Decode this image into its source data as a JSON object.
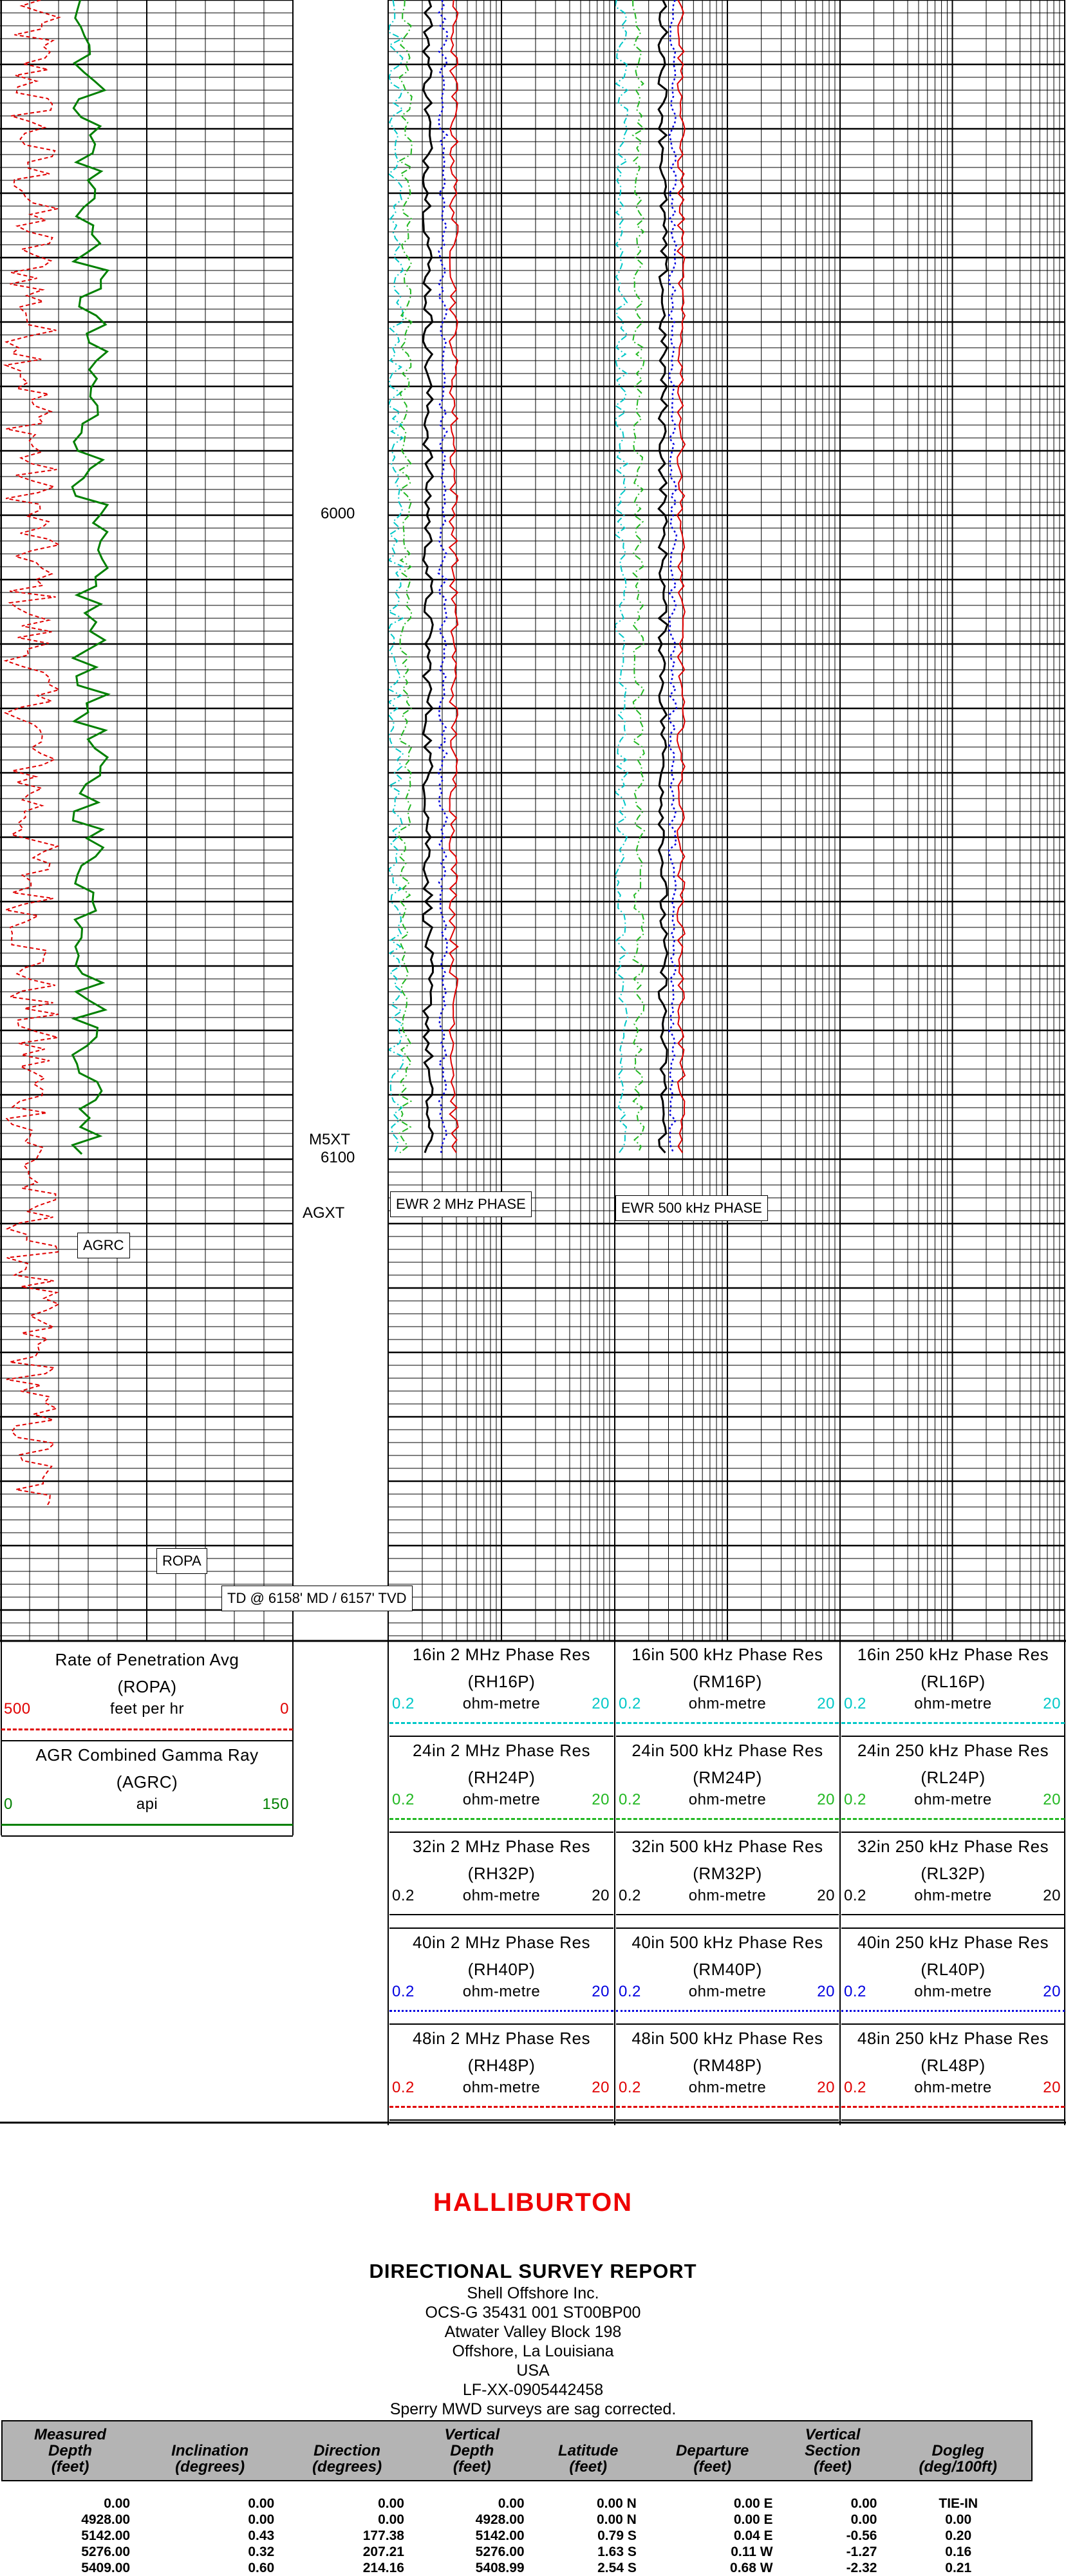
{
  "log": {
    "depth_labels": [
      "6000",
      "6100"
    ],
    "formation_tops": [
      "M5XT",
      "AGXT"
    ],
    "curve_tags": {
      "agrc": "AGRC",
      "ropa": "ROPA",
      "ewr2": "EWR 2 MHz PHASE",
      "ewr500": "EWR 500 kHz PHASE"
    },
    "td_label": "TD @ 6158' MD / 6157' TVD"
  },
  "headers": {
    "track1": [
      {
        "name": "Rate of Penetration Avg",
        "mnemonic": "(ROPA)",
        "unit": "feet per hr",
        "left": "500",
        "right": "0",
        "color": "#e00000",
        "style": "dashed"
      },
      {
        "name": "AGR Combined Gamma Ray",
        "mnemonic": "(AGRC)",
        "unit": "api",
        "left": "0",
        "right": "150",
        "color": "#008000",
        "style": "solid"
      }
    ],
    "track3": [
      {
        "name": "16in 2 MHz Phase Res",
        "mnemonic": "(RH16P)",
        "unit": "ohm-metre",
        "left": "0.2",
        "right": "20",
        "color": "#00c8c8",
        "style": "dashdot"
      },
      {
        "name": "24in 2 MHz Phase Res",
        "mnemonic": "(RH24P)",
        "unit": "ohm-metre",
        "left": "0.2",
        "right": "20",
        "color": "#22b822",
        "style": "dashdot"
      },
      {
        "name": "32in 2 MHz Phase Res",
        "mnemonic": "(RH32P)",
        "unit": "ohm-metre",
        "left": "0.2",
        "right": "20",
        "color": "#000000",
        "style": "solid"
      },
      {
        "name": "40in 2 MHz Phase Res",
        "mnemonic": "(RH40P)",
        "unit": "ohm-metre",
        "left": "0.2",
        "right": "20",
        "color": "#0000e0",
        "style": "dotted"
      },
      {
        "name": "48in 2 MHz Phase Res",
        "mnemonic": "(RH48P)",
        "unit": "ohm-metre",
        "left": "0.2",
        "right": "20",
        "color": "#e00000",
        "style": "longdash"
      }
    ],
    "track4": [
      {
        "name": "16in 500 kHz Phase Res",
        "mnemonic": "(RM16P)",
        "unit": "ohm-metre",
        "left": "0.2",
        "right": "20",
        "color": "#00c8c8",
        "style": "dashdot"
      },
      {
        "name": "24in 500 kHz Phase Res",
        "mnemonic": "(RM24P)",
        "unit": "ohm-metre",
        "left": "0.2",
        "right": "20",
        "color": "#22b822",
        "style": "dashdot"
      },
      {
        "name": "32in 500 kHz Phase Res",
        "mnemonic": "(RM32P)",
        "unit": "ohm-metre",
        "left": "0.2",
        "right": "20",
        "color": "#000000",
        "style": "solid"
      },
      {
        "name": "40in 500 kHz Phase Res",
        "mnemonic": "(RM40P)",
        "unit": "ohm-metre",
        "left": "0.2",
        "right": "20",
        "color": "#0000e0",
        "style": "dotted"
      },
      {
        "name": "48in 500 kHz Phase Res",
        "mnemonic": "(RM48P)",
        "unit": "ohm-metre",
        "left": "0.2",
        "right": "20",
        "color": "#e00000",
        "style": "longdash"
      }
    ],
    "track5": [
      {
        "name": "16in 250 kHz Phase Res",
        "mnemonic": "(RL16P)",
        "unit": "ohm-metre",
        "left": "0.2",
        "right": "20",
        "color": "#00c8c8",
        "style": "dashdot"
      },
      {
        "name": "24in 250 kHz Phase Res",
        "mnemonic": "(RL24P)",
        "unit": "ohm-metre",
        "left": "0.2",
        "right": "20",
        "color": "#22b822",
        "style": "dashdot"
      },
      {
        "name": "32in 250 kHz Phase Res",
        "mnemonic": "(RL32P)",
        "unit": "ohm-metre",
        "left": "0.2",
        "right": "20",
        "color": "#000000",
        "style": "solid"
      },
      {
        "name": "40in 250 kHz Phase Res",
        "mnemonic": "(RL40P)",
        "unit": "ohm-metre",
        "left": "0.2",
        "right": "20",
        "color": "#0000e0",
        "style": "dotted"
      },
      {
        "name": "48in 250 kHz Phase Res",
        "mnemonic": "(RL48P)",
        "unit": "ohm-metre",
        "left": "0.2",
        "right": "20",
        "color": "#e00000",
        "style": "longdash"
      }
    ]
  },
  "report": {
    "logo": "HALLIBURTON",
    "title": "DIRECTIONAL SURVEY REPORT",
    "lines": [
      "Shell Offshore Inc.",
      "OCS-G 35431 001 ST00BP00",
      "Atwater Valley Block 198",
      "Offshore, La Louisiana",
      "USA",
      "LF-XX-0905442458",
      "Sperry MWD surveys are sag corrected."
    ],
    "columns": [
      [
        "Measured",
        "Depth",
        "(feet)"
      ],
      [
        "Inclination",
        "(degrees)"
      ],
      [
        "Direction",
        "(degrees)"
      ],
      [
        "Vertical",
        "Depth",
        "(feet)"
      ],
      [
        "Latitude",
        "(feet)"
      ],
      [
        "Departure",
        "(feet)"
      ],
      [
        "Vertical",
        "Section",
        "(feet)"
      ],
      [
        "Dogleg",
        "(deg/100ft)"
      ]
    ],
    "rows": [
      [
        "0.00",
        "0.00",
        "0.00",
        "0.00",
        "0.00 N",
        "0.00 E",
        "0.00",
        "TIE-IN"
      ],
      [
        "4928.00",
        "0.00",
        "0.00",
        "4928.00",
        "0.00 N",
        "0.00 E",
        "0.00",
        "0.00"
      ],
      [
        "5142.00",
        "0.43",
        "177.38",
        "5142.00",
        "0.79 S",
        "0.04 E",
        "-0.56",
        "0.20"
      ],
      [
        "5276.00",
        "0.32",
        "207.21",
        "5276.00",
        "1.63 S",
        "0.11 W",
        "-1.27",
        "0.16"
      ],
      [
        "5409.00",
        "0.60",
        "214.16",
        "5408.99",
        "2.54 S",
        "0.68 W",
        "-2.32",
        "0.21"
      ]
    ]
  }
}
